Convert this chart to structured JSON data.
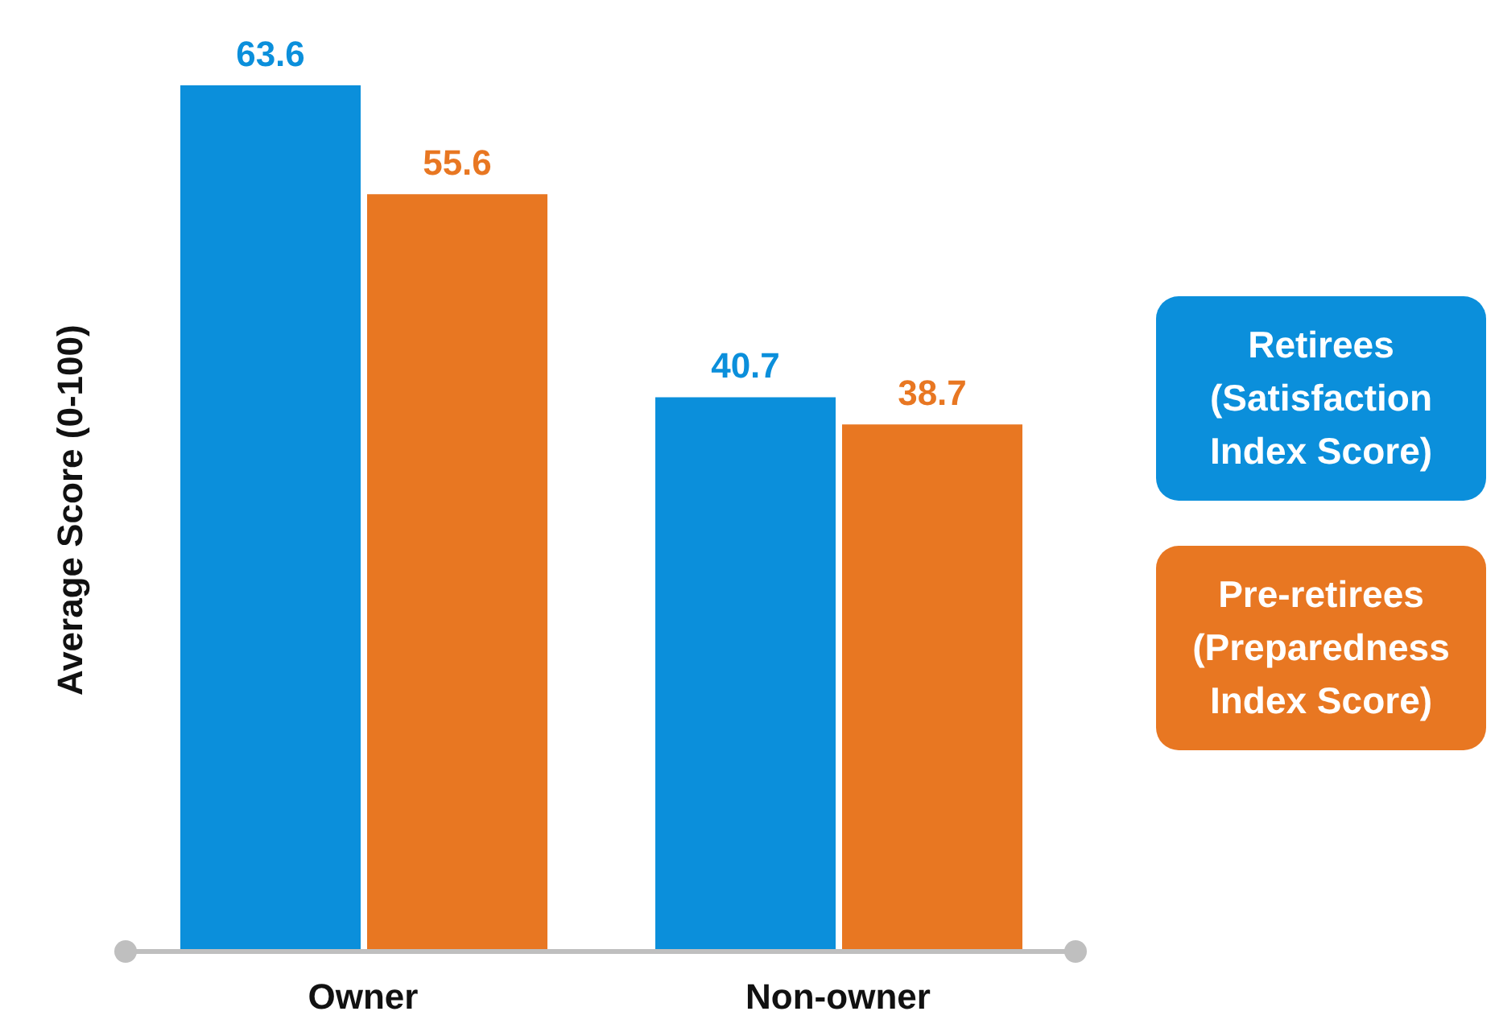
{
  "chart_data": {
    "type": "bar",
    "ylabel": "Average Score (0-100)",
    "categories": [
      "Owner",
      "Non-owner"
    ],
    "series": [
      {
        "name": "Retirees (Satisfaction Index Score)",
        "color": "#0b8fdb",
        "values": [
          63.6,
          40.7
        ]
      },
      {
        "name": "Pre-retirees (Preparedness Index Score)",
        "color": "#e87722",
        "values": [
          55.6,
          38.7
        ]
      }
    ],
    "data_labels": true,
    "legend": "right",
    "grid": false
  }
}
